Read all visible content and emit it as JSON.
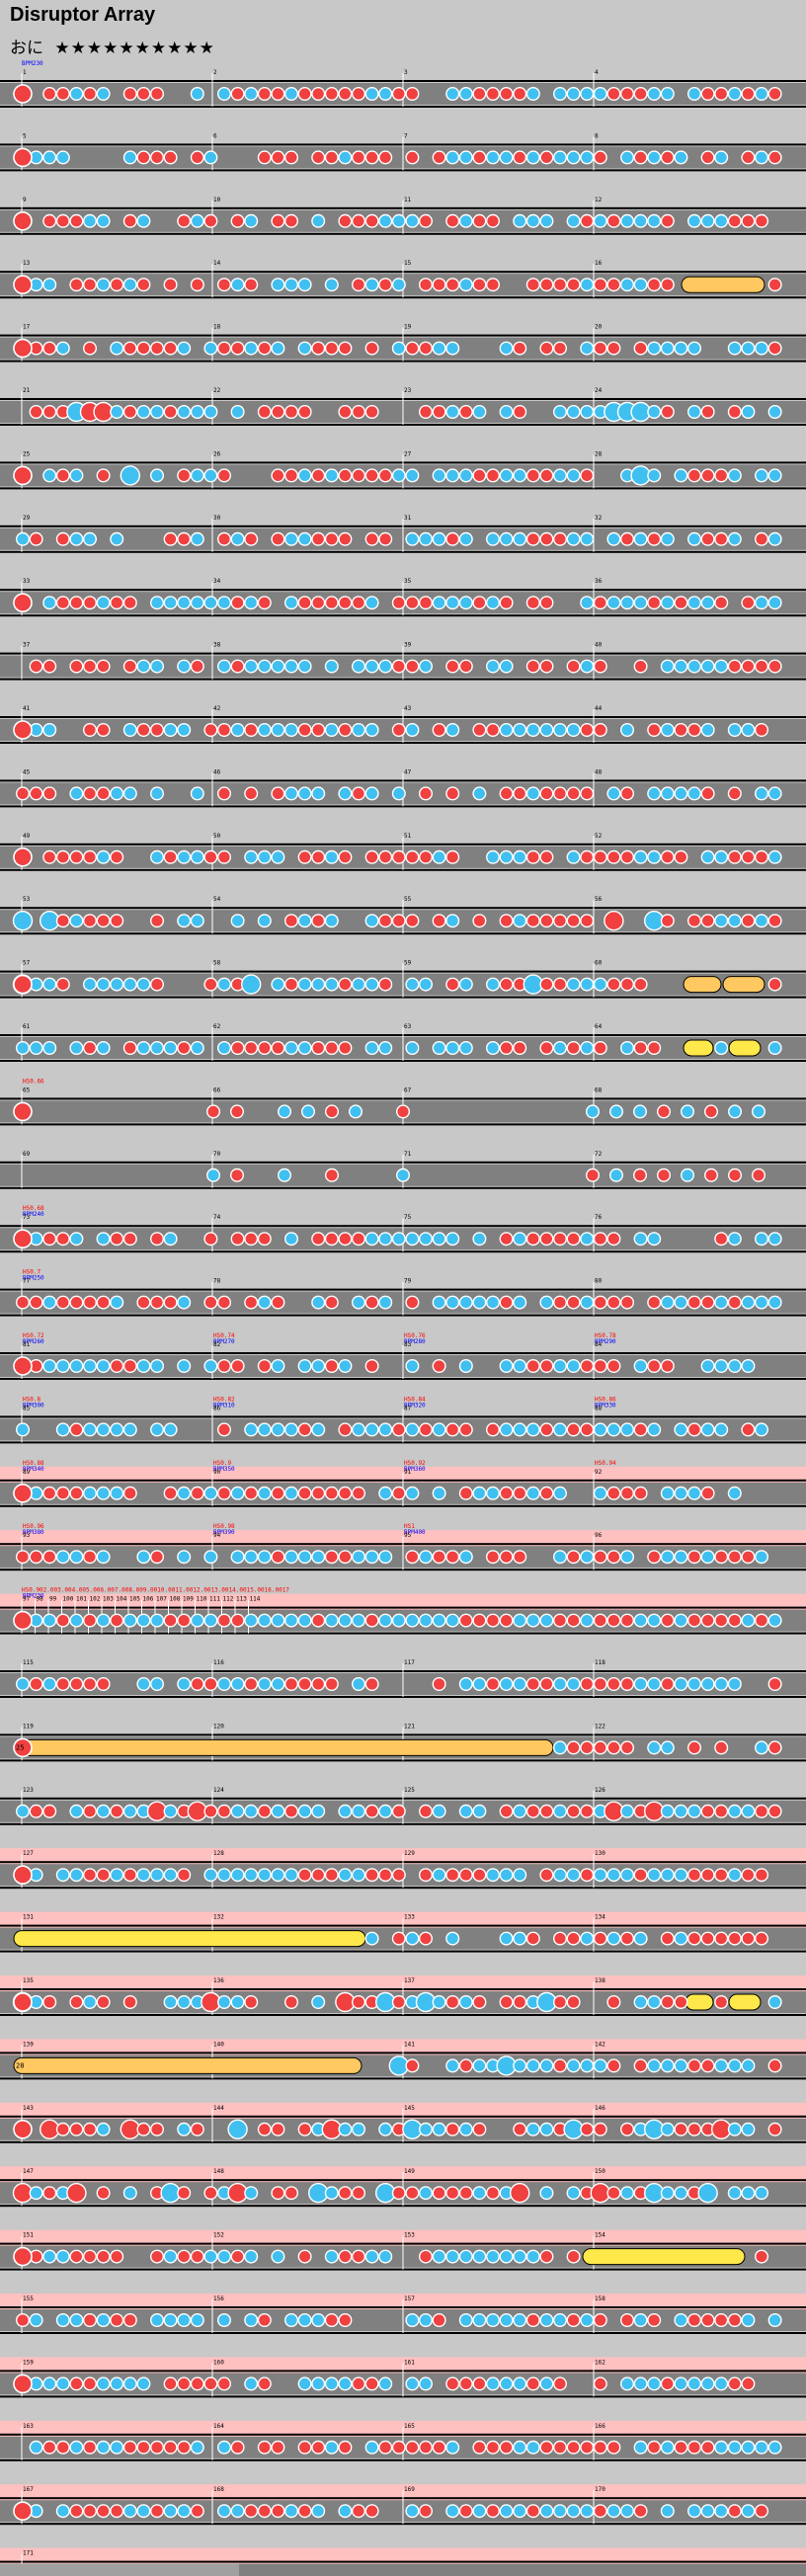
{
  "song": {
    "title": "Disruptor Array",
    "difficulty_label": "おに",
    "stars": "★★★★★★★★★★",
    "star_count": 10
  },
  "colors": {
    "background": "#c8c8c8",
    "lane": "#808080",
    "lane_gogo": "#ffc0c0",
    "don_note": "#f04040",
    "ka_note": "#40c0f0",
    "roll": "#ffd84a",
    "balloon": "#ffe84a",
    "barline": "#ffffff",
    "bpm_text": "#0000ff",
    "hs_text": "#ff0000"
  },
  "chart_data": {
    "type": "taiko-score",
    "initial_bpm_label": "BPM230",
    "measure_count": 171,
    "rows": [
      {
        "start": 1,
        "end": 4
      },
      {
        "start": 5,
        "end": 8
      },
      {
        "start": 9,
        "end": 12
      },
      {
        "start": 13,
        "end": 16
      },
      {
        "start": 17,
        "end": 20
      },
      {
        "start": 21,
        "end": 24
      },
      {
        "start": 25,
        "end": 28
      },
      {
        "start": 29,
        "end": 32
      },
      {
        "start": 33,
        "end": 36
      },
      {
        "start": 37,
        "end": 40
      },
      {
        "start": 41,
        "end": 44
      },
      {
        "start": 45,
        "end": 48
      },
      {
        "start": 49,
        "end": 52
      },
      {
        "start": 53,
        "end": 56
      },
      {
        "start": 57,
        "end": 60
      },
      {
        "start": 61,
        "end": 64
      },
      {
        "start": 65,
        "end": 68
      },
      {
        "start": 69,
        "end": 72
      },
      {
        "start": 73,
        "end": 76
      },
      {
        "start": 77,
        "end": 80
      },
      {
        "start": 81,
        "end": 84
      },
      {
        "start": 85,
        "end": 88
      },
      {
        "start": 89,
        "end": 92
      },
      {
        "start": 93,
        "end": 96
      },
      {
        "start": 97,
        "end": 114
      },
      {
        "start": 115,
        "end": 118
      },
      {
        "start": 119,
        "end": 122
      },
      {
        "start": 123,
        "end": 126
      },
      {
        "start": 127,
        "end": 130
      },
      {
        "start": 131,
        "end": 134
      },
      {
        "start": 135,
        "end": 138
      },
      {
        "start": 139,
        "end": 142
      },
      {
        "start": 143,
        "end": 146
      },
      {
        "start": 147,
        "end": 150
      },
      {
        "start": 151,
        "end": 154
      },
      {
        "start": 155,
        "end": 158
      },
      {
        "start": 159,
        "end": 162
      },
      {
        "start": 163,
        "end": 166
      },
      {
        "start": 167,
        "end": 170
      },
      {
        "start": 171,
        "end": 171
      }
    ],
    "scroll_labels": [
      {
        "measure": 65,
        "label": "HS0.66"
      },
      {
        "measure": 73,
        "label": "HS0.68"
      },
      {
        "measure": 77,
        "label": "HS0.7"
      },
      {
        "measure": 81,
        "label": "HS0.72"
      },
      {
        "measure": 82,
        "label": "HS0.74"
      },
      {
        "measure": 83,
        "label": "HS0.76"
      },
      {
        "measure": 84,
        "label": "HS0.78"
      },
      {
        "measure": 85,
        "label": "HS0.8"
      },
      {
        "measure": 86,
        "label": "HS0.82"
      },
      {
        "measure": 87,
        "label": "HS0.84"
      },
      {
        "measure": 88,
        "label": "HS0.86"
      },
      {
        "measure": 89,
        "label": "HS0.88"
      },
      {
        "measure": 90,
        "label": "HS0.9"
      },
      {
        "measure": 91,
        "label": "HS0.92"
      },
      {
        "measure": 92,
        "label": "HS0.94"
      },
      {
        "measure": 93,
        "label": "HS0.96"
      },
      {
        "measure": 94,
        "label": "HS0.98"
      },
      {
        "measure": 95,
        "label": "HS1"
      }
    ],
    "bpm_labels": [
      {
        "measure": 73,
        "label": "BPM240"
      },
      {
        "measure": 77,
        "label": "BPM250"
      },
      {
        "measure": 81,
        "label": "BPM260"
      },
      {
        "measure": 82,
        "label": "BPM270"
      },
      {
        "measure": 83,
        "label": "BPM280"
      },
      {
        "measure": 84,
        "label": "BPM290"
      },
      {
        "measure": 85,
        "label": "BPM300"
      },
      {
        "measure": 86,
        "label": "BPM310"
      },
      {
        "measure": 87,
        "label": "BPM320"
      },
      {
        "measure": 88,
        "label": "BPM330"
      },
      {
        "measure": 89,
        "label": "BPM340"
      },
      {
        "measure": 90,
        "label": "BPM350"
      },
      {
        "measure": 91,
        "label": "BPM360"
      },
      {
        "measure": 93,
        "label": "BPM380"
      },
      {
        "measure": 94,
        "label": "BPM390"
      },
      {
        "measure": 95,
        "label": "BPM400"
      },
      {
        "measure": 97,
        "label": "BPM230"
      }
    ],
    "row_97_header": "HS0.902.003.004.005.006.007.008.009.0010.0011.0012.0013.0014.0015.0016.0017",
    "gogo_rows": [
      22,
      23,
      24,
      28,
      29,
      30,
      31,
      32,
      33,
      34,
      35,
      36,
      37,
      38,
      39
    ],
    "roll_labels": [
      {
        "measure": 115,
        "label": "25"
      },
      {
        "measure": 139,
        "label": "28"
      }
    ]
  }
}
